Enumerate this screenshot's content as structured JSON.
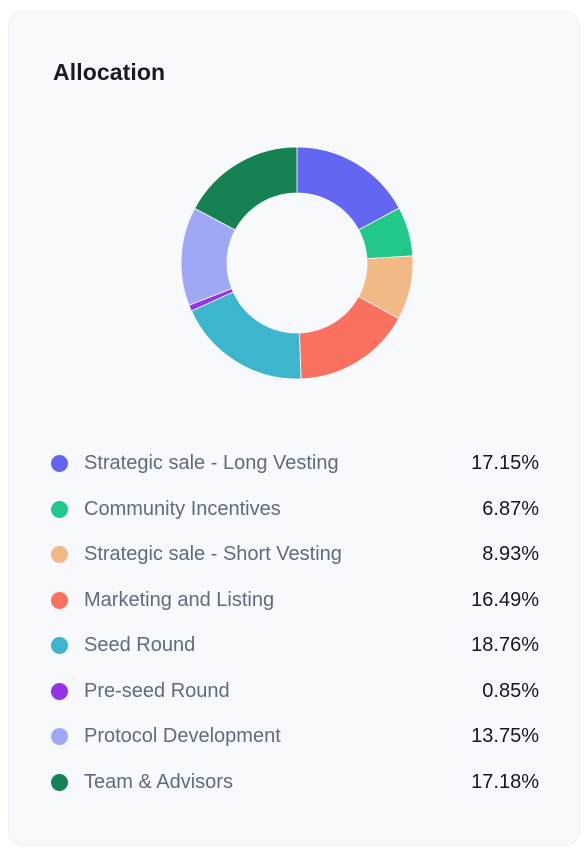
{
  "card": {
    "title": "Allocation"
  },
  "chart_data": {
    "type": "pie",
    "variant": "donut",
    "title": "Allocation",
    "categories": [
      "Strategic sale - Long Vesting",
      "Community Incentives",
      "Strategic sale - Short Vesting",
      "Marketing and Listing",
      "Seed Round",
      "Pre-seed Round",
      "Protocol Development",
      "Team & Advisors"
    ],
    "values": [
      17.15,
      6.87,
      8.93,
      16.49,
      18.76,
      0.85,
      13.75,
      17.18
    ],
    "value_labels": [
      "17.15%",
      "6.87%",
      "8.93%",
      "16.49%",
      "18.76%",
      "0.85%",
      "13.75%",
      "17.18%"
    ],
    "colors": [
      "#6366f1",
      "#22c88a",
      "#f0b986",
      "#fa7160",
      "#3cb5cd",
      "#9333ea",
      "#9fa8f4",
      "#168253"
    ],
    "legend_position": "bottom"
  }
}
